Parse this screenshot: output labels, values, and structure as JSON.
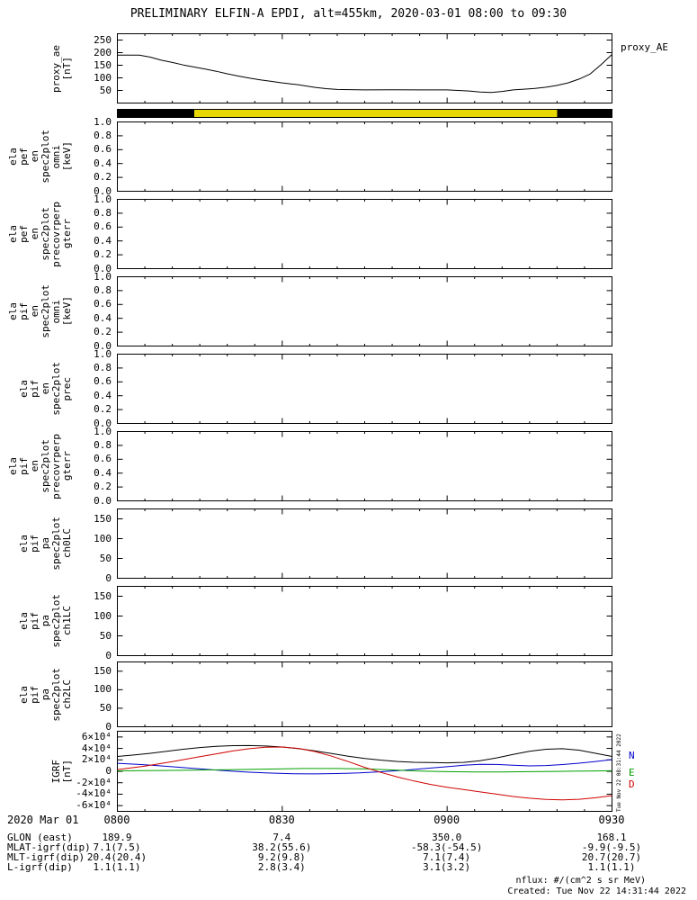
{
  "title": "PRELIMINARY ELFIN-A EPDI, alt=455km, 2020-03-01 08:00 to 09:30",
  "right_labels": {
    "proxy": "proxy_AE"
  },
  "igrf_legend": [
    {
      "label": "N",
      "color": "#0000cd"
    },
    {
      "label": "E",
      "color": "#00a000"
    },
    {
      "label": "D",
      "color": "#d00000"
    }
  ],
  "side_timestamp": "Tue Nov 22 08:31:44 2022",
  "footer": {
    "nflux": "nflux: #/(cm^2 s sr MeV)",
    "created": "Created: Tue Nov 22 14:31:44 2022"
  },
  "time_axis": {
    "date_label": "2020 Mar 01",
    "minute_range": [
      0,
      90
    ],
    "ticks": [
      {
        "label": "0800",
        "minute": 0
      },
      {
        "label": "0830",
        "minute": 30
      },
      {
        "label": "0900",
        "minute": 60
      },
      {
        "label": "0930",
        "minute": 90
      }
    ]
  },
  "var_table": {
    "rows": [
      {
        "label": "GLON (east)",
        "values": [
          "189.9",
          "7.4",
          "350.0",
          "168.1"
        ]
      },
      {
        "label": "MLAT-igrf(dip)",
        "values": [
          "7.1(7.5)",
          "38.2(55.6)",
          "-58.3(-54.5)",
          "-9.9(-9.5)"
        ]
      },
      {
        "label": "MLT-igrf(dip)",
        "values": [
          "20.4(20.4)",
          "9.2(9.8)",
          "7.1(7.4)",
          "20.7(20.7)"
        ]
      },
      {
        "label": "L-igrf(dip)",
        "values": [
          "1.1(1.1)",
          "2.8(3.4)",
          "3.1(3.2)",
          "1.1(1.1)"
        ]
      }
    ]
  },
  "panels": [
    {
      "id": "proxy-ae",
      "label_lines": [
        "proxy_ae",
        "[nT]"
      ],
      "ylim": [
        0,
        275
      ],
      "yticks": [
        {
          "v": 250,
          "label": "250"
        },
        {
          "v": 200,
          "label": "200"
        },
        {
          "v": 150,
          "label": "150"
        },
        {
          "v": 100,
          "label": "100"
        },
        {
          "v": 50,
          "label": "50"
        }
      ]
    },
    {
      "id": "sunlight-bar",
      "label_lines": [],
      "ylim": [
        0,
        1
      ],
      "yticks": []
    },
    {
      "id": "pef-en-omni",
      "label_lines": [
        "ela",
        "pef",
        "en",
        "spec2plot",
        "omni",
        "[keV]"
      ],
      "ylim": [
        0,
        1
      ],
      "yticks": [
        {
          "v": 1.0,
          "label": "1.0"
        },
        {
          "v": 0.8,
          "label": "0.8"
        },
        {
          "v": 0.6,
          "label": "0.6"
        },
        {
          "v": 0.4,
          "label": "0.4"
        },
        {
          "v": 0.2,
          "label": "0.2"
        },
        {
          "v": 0.0,
          "label": "0.0"
        }
      ]
    },
    {
      "id": "pef-en-precovrperp",
      "label_lines": [
        "ela",
        "pef",
        "en",
        "spec2plot",
        "precovrperp",
        "gterr"
      ],
      "ylim": [
        0,
        1
      ],
      "yticks": [
        {
          "v": 1.0,
          "label": "1.0"
        },
        {
          "v": 0.8,
          "label": "0.8"
        },
        {
          "v": 0.6,
          "label": "0.6"
        },
        {
          "v": 0.4,
          "label": "0.4"
        },
        {
          "v": 0.2,
          "label": "0.2"
        },
        {
          "v": 0.0,
          "label": "0.0"
        }
      ]
    },
    {
      "id": "pif-en-omni",
      "label_lines": [
        "ela",
        "pif",
        "en",
        "spec2plot",
        "omni",
        "[keV]"
      ],
      "ylim": [
        0,
        1
      ],
      "yticks": [
        {
          "v": 1.0,
          "label": "1.0"
        },
        {
          "v": 0.8,
          "label": "0.8"
        },
        {
          "v": 0.6,
          "label": "0.6"
        },
        {
          "v": 0.4,
          "label": "0.4"
        },
        {
          "v": 0.2,
          "label": "0.2"
        },
        {
          "v": 0.0,
          "label": "0.0"
        }
      ]
    },
    {
      "id": "pif-en-prec",
      "label_lines": [
        "ela",
        "pif",
        "en",
        "spec2plot",
        "prec"
      ],
      "ylim": [
        0,
        1
      ],
      "yticks": [
        {
          "v": 1.0,
          "label": "1.0"
        },
        {
          "v": 0.8,
          "label": "0.8"
        },
        {
          "v": 0.6,
          "label": "0.6"
        },
        {
          "v": 0.4,
          "label": "0.4"
        },
        {
          "v": 0.2,
          "label": "0.2"
        },
        {
          "v": 0.0,
          "label": "0.0"
        }
      ]
    },
    {
      "id": "pif-en-precovrperp",
      "label_lines": [
        "ela",
        "pif",
        "en",
        "spec2plot",
        "precovrperp",
        "gterr"
      ],
      "ylim": [
        0,
        1
      ],
      "yticks": [
        {
          "v": 1.0,
          "label": "1.0"
        },
        {
          "v": 0.8,
          "label": "0.8"
        },
        {
          "v": 0.6,
          "label": "0.6"
        },
        {
          "v": 0.4,
          "label": "0.4"
        },
        {
          "v": 0.2,
          "label": "0.2"
        },
        {
          "v": 0.0,
          "label": "0.0"
        }
      ]
    },
    {
      "id": "pif-pa-ch0lc",
      "label_lines": [
        "ela",
        "pif",
        "pa",
        "spec2plot",
        "ch0LC"
      ],
      "ylim": [
        0,
        175
      ],
      "yticks": [
        {
          "v": 150,
          "label": "150"
        },
        {
          "v": 100,
          "label": "100"
        },
        {
          "v": 50,
          "label": "50"
        },
        {
          "v": 0,
          "label": "0"
        }
      ]
    },
    {
      "id": "pif-pa-ch1lc",
      "label_lines": [
        "ela",
        "pif",
        "pa",
        "spec2plot",
        "ch1LC"
      ],
      "ylim": [
        0,
        175
      ],
      "yticks": [
        {
          "v": 150,
          "label": "150"
        },
        {
          "v": 100,
          "label": "100"
        },
        {
          "v": 50,
          "label": "50"
        },
        {
          "v": 0,
          "label": "0"
        }
      ]
    },
    {
      "id": "pif-pa-ch2lc",
      "label_lines": [
        "ela",
        "pif",
        "pa",
        "spec2plot",
        "ch2LC"
      ],
      "ylim": [
        0,
        175
      ],
      "yticks": [
        {
          "v": 150,
          "label": "150"
        },
        {
          "v": 100,
          "label": "100"
        },
        {
          "v": 50,
          "label": "50"
        },
        {
          "v": 0,
          "label": "0"
        }
      ]
    },
    {
      "id": "igrf",
      "label_lines": [
        "IGRF",
        "[nT]"
      ],
      "ylim": [
        -70000,
        70000
      ],
      "yticks": [
        {
          "v": 60000,
          "label": "6×10⁴"
        },
        {
          "v": 40000,
          "label": "4×10⁴"
        },
        {
          "v": 20000,
          "label": "2×10⁴"
        },
        {
          "v": 0,
          "label": "0"
        },
        {
          "v": -20000,
          "label": "-2×10⁴"
        },
        {
          "v": -40000,
          "label": "-4×10⁴"
        },
        {
          "v": -60000,
          "label": "-6×10⁴"
        }
      ]
    }
  ],
  "chart_data": [
    {
      "type": "line",
      "panel": "proxy-ae",
      "name": "proxy_AE",
      "ylabel": "proxy_ae [nT]",
      "xlabel": "minutes after 08:00 UT",
      "ylim": [
        0,
        275
      ],
      "color": "#000000",
      "x": [
        0,
        4,
        6,
        8,
        10,
        12,
        14,
        16,
        18,
        20,
        22,
        24,
        26,
        28,
        30,
        33,
        36,
        38,
        40,
        45,
        50,
        55,
        60,
        62,
        64,
        66,
        68,
        70,
        72,
        74,
        76,
        78,
        80,
        82,
        84,
        86,
        88,
        90
      ],
      "values": [
        190,
        190,
        182,
        170,
        161,
        151,
        143,
        135,
        126,
        116,
        107,
        99,
        92,
        86,
        80,
        72,
        62,
        57,
        54,
        52,
        53,
        52,
        52,
        50,
        48,
        44,
        42,
        46,
        52,
        55,
        58,
        63,
        70,
        80,
        95,
        115,
        152,
        193
      ]
    },
    {
      "type": "bar",
      "panel": "sunlight-bar",
      "name": "sunlight-shadow-strip",
      "segments": [
        {
          "start_min": 0,
          "end_min": 14,
          "color": "#000000"
        },
        {
          "start_min": 14,
          "end_min": 80,
          "color": "#e6d800"
        },
        {
          "start_min": 80,
          "end_min": 90,
          "color": "#000000"
        }
      ]
    },
    {
      "type": "line",
      "panel": "pef-en-omni",
      "series": []
    },
    {
      "type": "line",
      "panel": "pef-en-precovrperp",
      "series": []
    },
    {
      "type": "line",
      "panel": "pif-en-omni",
      "series": []
    },
    {
      "type": "line",
      "panel": "pif-en-prec",
      "series": []
    },
    {
      "type": "line",
      "panel": "pif-en-precovrperp",
      "series": []
    },
    {
      "type": "line",
      "panel": "pif-pa-ch0lc",
      "series": []
    },
    {
      "type": "line",
      "panel": "pif-pa-ch1lc",
      "series": []
    },
    {
      "type": "line",
      "panel": "pif-pa-ch2lc",
      "series": []
    },
    {
      "type": "line",
      "panel": "igrf",
      "ylabel": "IGRF [nT]",
      "ylim": [
        -70000,
        70000
      ],
      "legend_position": "right",
      "series": [
        {
          "name": "Btotal",
          "color": "#000000",
          "x": [
            0,
            3,
            6,
            9,
            12,
            15,
            18,
            21,
            24,
            27,
            30,
            33,
            36,
            39,
            42,
            45,
            48,
            51,
            54,
            57,
            60,
            63,
            66,
            69,
            72,
            75,
            78,
            81,
            84,
            87,
            90
          ],
          "values": [
            26000,
            28500,
            31500,
            35000,
            38500,
            41500,
            43500,
            44800,
            45000,
            44200,
            42500,
            39500,
            35500,
            31000,
            26500,
            22500,
            19500,
            17200,
            15800,
            15200,
            14800,
            15500,
            18500,
            23500,
            29500,
            35000,
            38500,
            39500,
            37000,
            31500,
            26000
          ]
        },
        {
          "name": "N",
          "color": "#0000cd",
          "x": [
            0,
            4,
            8,
            12,
            16,
            20,
            24,
            28,
            32,
            36,
            40,
            44,
            48,
            52,
            56,
            60,
            63,
            66,
            69,
            72,
            75,
            78,
            81,
            84,
            87,
            90
          ],
          "values": [
            14000,
            12000,
            9500,
            6500,
            3500,
            800,
            -1500,
            -3200,
            -4200,
            -4500,
            -4000,
            -2800,
            -800,
            1800,
            4800,
            8000,
            10500,
            12200,
            12000,
            10500,
            9500,
            10000,
            11800,
            14200,
            17200,
            20500
          ]
        },
        {
          "name": "E",
          "color": "#00a000",
          "x": [
            0,
            10,
            20,
            28,
            34,
            40,
            45,
            50,
            55,
            60,
            65,
            70,
            75,
            80,
            85,
            90
          ],
          "values": [
            800,
            1500,
            2600,
            4000,
            4800,
            4900,
            4200,
            2400,
            400,
            -600,
            -1100,
            -1100,
            -600,
            -100,
            400,
            900
          ]
        },
        {
          "name": "D",
          "color": "#d00000",
          "x": [
            0,
            5,
            10,
            15,
            18,
            21,
            24,
            27,
            30,
            33,
            36,
            39,
            42,
            45,
            48,
            51,
            54,
            57,
            60,
            63,
            66,
            69,
            72,
            75,
            78,
            81,
            84,
            87,
            90
          ],
          "values": [
            3000,
            9000,
            17000,
            25500,
            30500,
            35500,
            39500,
            42000,
            42500,
            40000,
            34500,
            26500,
            17000,
            7000,
            -2000,
            -10000,
            -17000,
            -23000,
            -28000,
            -32000,
            -36000,
            -40000,
            -44000,
            -47000,
            -49200,
            -50000,
            -49000,
            -46200,
            -42500
          ]
        }
      ]
    }
  ]
}
